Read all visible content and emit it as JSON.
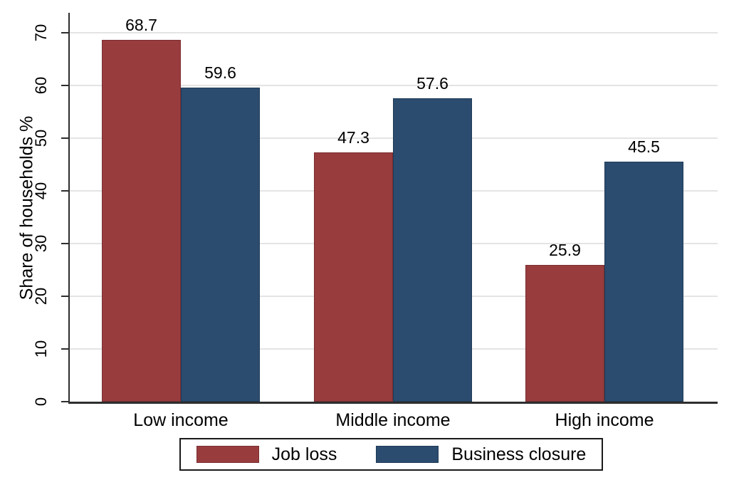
{
  "chart_data": {
    "type": "bar",
    "categories": [
      "Low income",
      "Middle income",
      "High income"
    ],
    "series": [
      {
        "name": "Job loss",
        "color": "#983c3e",
        "border_color": "#7c2f31",
        "values": [
          68.7,
          47.3,
          25.9
        ]
      },
      {
        "name": "Business closure",
        "color": "#2b4c6e",
        "border_color": "#1f3a57",
        "values": [
          59.6,
          57.6,
          45.5
        ]
      }
    ],
    "title": "",
    "xlabel": "",
    "ylabel": "Share of households %",
    "ylim": [
      0,
      70
    ],
    "yticks": [
      0,
      10,
      20,
      30,
      40,
      50,
      60,
      70
    ],
    "grid": "horizontal",
    "value_labels": [
      "68.7",
      "59.6",
      "47.3",
      "57.6",
      "25.9",
      "45.5"
    ],
    "legend_position": "bottom-boxed"
  },
  "colors": {
    "background": "#ffffff",
    "axis": "#2e2e2e",
    "grid": "#e4e4e4",
    "text": "#000000",
    "legend_border": "#1a1a1a"
  }
}
